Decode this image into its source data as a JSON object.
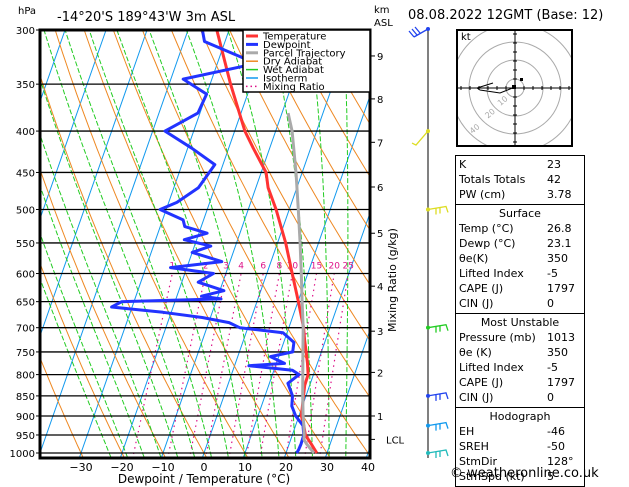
{
  "header": {
    "pressure_unit": "hPa",
    "location": "-14°20'S  189°43'W  3m  ASL",
    "height_unit_1": "km",
    "height_unit_2": "ASL",
    "datetime": "08.08.2022  12GMT  (Base: 12)"
  },
  "legend": [
    {
      "label": "Temperature",
      "color": "#ff3333",
      "style": "solid"
    },
    {
      "label": "Dewpoint",
      "color": "#2233ff",
      "style": "solid"
    },
    {
      "label": "Parcel Trajectory",
      "color": "#aaaaaa",
      "style": "solid"
    },
    {
      "label": "Dry Adiabat",
      "color": "#ee8822",
      "style": "solid"
    },
    {
      "label": "Wet Adiabat",
      "color": "#22cc22",
      "style": "solid"
    },
    {
      "label": "Isotherm",
      "color": "#1199ee",
      "style": "solid"
    },
    {
      "label": "Mixing Ratio",
      "color": "#dd1188",
      "style": "dotted"
    }
  ],
  "chart_data": {
    "type": "line",
    "subtype": "skew-T log-P",
    "title": "-14°20'S  189°43'W  3m  ASL",
    "xlabel": "Dewpoint / Temperature (°C)",
    "ylabel": "hPa",
    "y2label": "Mixing Ratio (g/kg)",
    "xlim": [
      -40,
      40
    ],
    "ylim": [
      1000,
      300
    ],
    "x_ticks": [
      -30,
      -20,
      -10,
      0,
      10,
      20,
      30,
      40
    ],
    "pressure_levels": [
      300,
      350,
      400,
      450,
      500,
      550,
      600,
      650,
      700,
      750,
      800,
      850,
      900,
      950,
      1000
    ],
    "height_ticks_km": [
      {
        "km": "9",
        "p": 323
      },
      {
        "km": "8",
        "p": 365
      },
      {
        "km": "7",
        "p": 413
      },
      {
        "km": "6",
        "p": 469
      },
      {
        "km": "5",
        "p": 535
      },
      {
        "km": "4",
        "p": 622
      },
      {
        "km": "3",
        "p": 707
      },
      {
        "km": "2",
        "p": 795
      },
      {
        "km": "1",
        "p": 900
      },
      {
        "km": "LCL",
        "p": 962
      }
    ],
    "mixing_ratio_labels": [
      1,
      2,
      3,
      4,
      6,
      8,
      10,
      15,
      20,
      25
    ],
    "series": [
      {
        "name": "Temperature",
        "color": "#ff3333",
        "points": [
          [
            1000,
            27.5
          ],
          [
            975,
            25.4
          ],
          [
            950,
            23.2
          ],
          [
            925,
            22.0
          ],
          [
            900,
            20.6
          ],
          [
            875,
            20.0
          ],
          [
            850,
            19.4
          ],
          [
            825,
            18.8
          ],
          [
            800,
            18.7
          ],
          [
            775,
            17.6
          ],
          [
            750,
            16.3
          ],
          [
            725,
            14.9
          ],
          [
            700,
            13.6
          ],
          [
            650,
            10.1
          ],
          [
            600,
            6.2
          ],
          [
            550,
            2.0
          ],
          [
            500,
            -3.2
          ],
          [
            470,
            -7.0
          ],
          [
            450,
            -8.8
          ],
          [
            420,
            -14.0
          ],
          [
            400,
            -17.5
          ],
          [
            350,
            -25.0
          ],
          [
            300,
            -33.0
          ]
        ]
      },
      {
        "name": "Dewpoint",
        "color": "#2233ff",
        "points": [
          [
            1000,
            22.6
          ],
          [
            990,
            22.8
          ],
          [
            975,
            22.9
          ],
          [
            950,
            22.8
          ],
          [
            925,
            21.8
          ],
          [
            900,
            19.2
          ],
          [
            875,
            17.4
          ],
          [
            850,
            16.7
          ],
          [
            820,
            14.5
          ],
          [
            800,
            16.5
          ],
          [
            790,
            14.5
          ],
          [
            780,
            3.5
          ],
          [
            775,
            12.0
          ],
          [
            760,
            8.0
          ],
          [
            750,
            13.0
          ],
          [
            730,
            12.5
          ],
          [
            710,
            9.0
          ],
          [
            700,
            -2.0
          ],
          [
            690,
            -5.0
          ],
          [
            680,
            -12.0
          ],
          [
            670,
            -22.0
          ],
          [
            660,
            -35.0
          ],
          [
            650,
            -33.0
          ],
          [
            645,
            -9.0
          ],
          [
            640,
            -14.0
          ],
          [
            630,
            -9.0
          ],
          [
            615,
            -16.0
          ],
          [
            600,
            -13.0
          ],
          [
            590,
            -24.0
          ],
          [
            580,
            -12.0
          ],
          [
            565,
            -20.0
          ],
          [
            555,
            -16.0
          ],
          [
            545,
            -23.0
          ],
          [
            535,
            -18.0
          ],
          [
            525,
            -24.0
          ],
          [
            515,
            -25.0
          ],
          [
            500,
            -31.5
          ],
          [
            490,
            -28.0
          ],
          [
            470,
            -24.0
          ],
          [
            440,
            -22.0
          ],
          [
            420,
            -29.0
          ],
          [
            400,
            -37.0
          ],
          [
            380,
            -30.5
          ],
          [
            360,
            -30.0
          ],
          [
            345,
            -37.0
          ],
          [
            330,
            -20.5
          ],
          [
            310,
            -35.0
          ],
          [
            300,
            -36.5
          ]
        ]
      },
      {
        "name": "Parcel Trajectory",
        "color": "#aaaaaa",
        "points": [
          [
            1000,
            26.8
          ],
          [
            975,
            24.3
          ],
          [
            962,
            23.2
          ],
          [
            950,
            22.9
          ],
          [
            925,
            22.0
          ],
          [
            900,
            21.0
          ],
          [
            850,
            19.2
          ],
          [
            800,
            17.4
          ],
          [
            750,
            15.5
          ],
          [
            700,
            13.5
          ],
          [
            650,
            11.0
          ],
          [
            600,
            8.4
          ],
          [
            550,
            5.5
          ],
          [
            500,
            2.2
          ],
          [
            450,
            -1.5
          ],
          [
            400,
            -6.0
          ],
          [
            380,
            -8.5
          ]
        ]
      }
    ],
    "wind_barbs": [
      {
        "p": 300,
        "color": "#2244ee",
        "dir": "NE"
      },
      {
        "p": 400,
        "color": "#dddd22",
        "dir": "SW"
      },
      {
        "p": 500,
        "color": "#dddd22",
        "dir": "E"
      },
      {
        "p": 700,
        "color": "#22cc22",
        "dir": "E"
      },
      {
        "p": 850,
        "color": "#2244ee",
        "dir": "E"
      },
      {
        "p": 925,
        "color": "#1199ee",
        "dir": "E"
      },
      {
        "p": 1000,
        "color": "#22bbbb",
        "dir": "E"
      }
    ]
  },
  "hodograph": {
    "unit": "kt",
    "ring_labels": [
      "10",
      "20",
      "40"
    ]
  },
  "indices": {
    "k_label": "K",
    "k_value": "23",
    "tt_label": "Totals Totals",
    "tt_value": "42",
    "pw_label": "PW (cm)",
    "pw_value": "3.78"
  },
  "surface": {
    "title": "Surface",
    "rows": [
      {
        "label": "Temp (°C)",
        "value": "26.8"
      },
      {
        "label": "Dewp (°C)",
        "value": "23.1"
      },
      {
        "label": "θe(K)",
        "value": "350"
      },
      {
        "label": "Lifted Index",
        "value": "-5"
      },
      {
        "label": "CAPE (J)",
        "value": "1797"
      },
      {
        "label": "CIN (J)",
        "value": "0"
      }
    ]
  },
  "most_unstable": {
    "title": "Most Unstable",
    "rows": [
      {
        "label": "Pressure (mb)",
        "value": "1013"
      },
      {
        "label": "θe (K)",
        "value": "350"
      },
      {
        "label": "Lifted Index",
        "value": "-5"
      },
      {
        "label": "CAPE (J)",
        "value": "1797"
      },
      {
        "label": "CIN (J)",
        "value": "0"
      }
    ]
  },
  "hodograph_table": {
    "title": "Hodograph",
    "rows": [
      {
        "label": "EH",
        "value": "-46"
      },
      {
        "label": "SREH",
        "value": "-50"
      },
      {
        "label": "StmDir",
        "value": "128°"
      },
      {
        "label": "StmSpd (kt)",
        "value": "5"
      }
    ]
  },
  "footer": {
    "copyright": "© weatheronline.co.uk"
  }
}
